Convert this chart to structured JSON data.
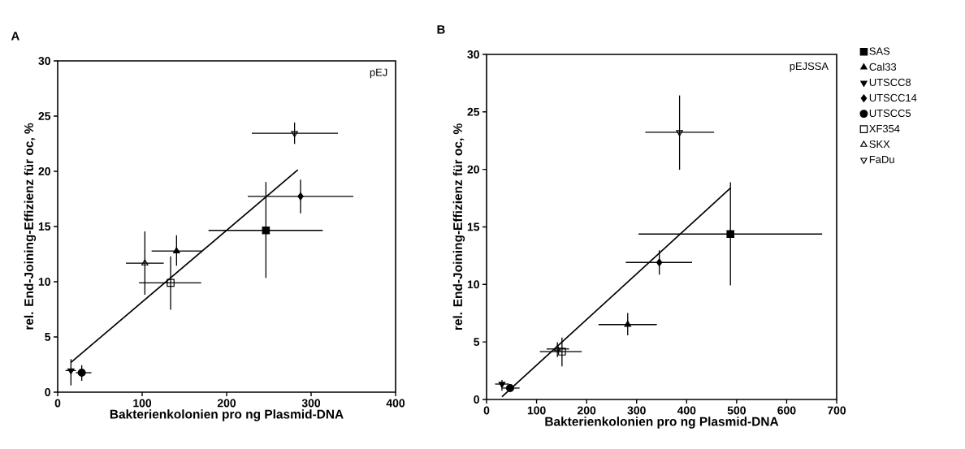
{
  "chart_data": [
    {
      "type": "scatter",
      "title": "A",
      "xlabel": "Bakterienkolonien pro ng Plasmid-DNA",
      "ylabel": "rel. End-Joining-Effizienz für oc, %",
      "annotations": [
        "pEJ"
      ],
      "xlim": [
        0,
        400
      ],
      "ylim": [
        0,
        30
      ],
      "xticks": [
        0,
        100,
        200,
        300,
        400
      ],
      "yticks": [
        0,
        5,
        10,
        15,
        20,
        25,
        30
      ],
      "grid": false,
      "legend": false,
      "series": [
        {
          "color": "#000000",
          "marker": "square",
          "x": [
            246.5
          ],
          "values": [
            14.65
          ],
          "xerrors": [
            [
              178.5,
              313.8
            ]
          ],
          "errors": [
            [
              10.34,
              19.03
            ]
          ]
        },
        {
          "color": "#000000",
          "marker": "triangle",
          "x": [
            140.7
          ],
          "values": [
            12.78
          ],
          "xerrors": [
            [
              111.2,
              170.5
            ]
          ],
          "errors": [
            [
              11.46,
              14.2
            ]
          ]
        },
        {
          "color": "#000000",
          "marker": "triangle_down",
          "x": [
            15.7
          ],
          "values": [
            1.96
          ],
          "xerrors": [
            [
              9.3,
              21.5
            ]
          ],
          "errors": [
            [
              0.6,
              3.0
            ]
          ]
        },
        {
          "color": "#000000",
          "marker": "diamond",
          "x": [
            287.5
          ],
          "values": [
            17.73
          ],
          "xerrors": [
            [
              225,
              350
            ]
          ],
          "errors": [
            [
              16.2,
              19.25
            ]
          ]
        },
        {
          "color": "#000000",
          "marker": "circle",
          "x": [
            28.5
          ],
          "values": [
            1.76
          ],
          "xerrors": [
            [
              21.5,
              40
            ]
          ],
          "errors": [
            [
              1.03,
              2.45
            ]
          ]
        },
        {
          "color": "#000000",
          "marker": "square_open",
          "x": [
            133.7
          ],
          "values": [
            9.9
          ],
          "xerrors": [
            [
              96.2,
              169.9
            ]
          ],
          "errors": [
            [
              7.47,
              12.3
            ]
          ]
        },
        {
          "color": "#000000",
          "marker": "triangle_open",
          "x": [
            103.2
          ],
          "values": [
            11.68
          ],
          "xerrors": [
            [
              80.8,
              125.6
            ]
          ],
          "errors": [
            [
              8.82,
              14.55
            ]
          ]
        },
        {
          "color": "#000000",
          "marker": "triangle_down_open",
          "x": [
            280.4
          ],
          "values": [
            23.44
          ],
          "xerrors": [
            [
              229.8,
              331.7
            ]
          ],
          "errors": [
            [
              22.48,
              24.42
            ]
          ]
        },
        {
          "type": "line",
          "color": "#000000",
          "x": [
            15.7,
            284.3
          ],
          "values": [
            2.69,
            20.13
          ]
        }
      ]
    },
    {
      "type": "scatter",
      "title": "B",
      "xlabel": "Bakterienkolonien pro ng Plasmid-DNA",
      "ylabel": "rel. End-Joining-Effizienz für oc, %",
      "annotations": [
        "pEJSSA"
      ],
      "xlim": [
        0,
        700
      ],
      "ylim": [
        0,
        30
      ],
      "xticks": [
        0,
        100,
        200,
        300,
        400,
        500,
        600,
        700
      ],
      "yticks": [
        0,
        5,
        10,
        15,
        20,
        25,
        30
      ],
      "grid": false,
      "legend": "right",
      "series": [
        {
          "name": "SAS",
          "color": "#000000",
          "marker": "square",
          "x": [
            487.6
          ],
          "values": [
            14.38
          ],
          "xerrors": [
            [
              303.8,
              671
            ]
          ],
          "errors": [
            [
              9.91,
              18.89
            ]
          ]
        },
        {
          "name": "Cal33",
          "color": "#000000",
          "marker": "triangle",
          "x": [
            282.2
          ],
          "values": [
            6.51
          ],
          "xerrors": [
            [
              223.8,
              340.5
            ]
          ],
          "errors": [
            [
              5.57,
              7.52
            ]
          ]
        },
        {
          "name": "UTSCC8",
          "color": "#000000",
          "marker": "triangle_down",
          "x": [
            30.8
          ],
          "values": [
            1.34
          ],
          "xerrors": [
            [
              17,
              45
            ]
          ],
          "errors": [
            [
              0.75,
              1.7
            ]
          ]
        },
        {
          "name": "UTSCC14",
          "color": "#000000",
          "marker": "diamond",
          "x": [
            345.4
          ],
          "values": [
            11.91
          ],
          "xerrors": [
            [
              278.4,
              410.8
            ]
          ],
          "errors": [
            [
              10.85,
              12.97
            ]
          ]
        },
        {
          "name": "UTSCC5",
          "color": "#000000",
          "marker": "circle",
          "x": [
            47
          ],
          "values": [
            0.99
          ],
          "xerrors": [
            [
              32.4,
              66
            ]
          ],
          "errors": [
            [
              0.8,
              1.2
            ]
          ]
        },
        {
          "name": "XF354",
          "color": "#000000",
          "marker": "square_open",
          "x": [
            150.8
          ],
          "values": [
            4.16
          ],
          "xerrors": [
            [
              106.5,
              190.3
            ]
          ],
          "errors": [
            [
              2.87,
              5.38
            ]
          ]
        },
        {
          "name": "SKX",
          "color": "#000000",
          "marker": "triangle_open",
          "x": [
            141.6
          ],
          "values": [
            4.39
          ],
          "xerrors": [
            [
              120,
              165
            ]
          ],
          "errors": [
            [
              3.69,
              4.98
            ]
          ]
        },
        {
          "name": "FaDu",
          "color": "#000000",
          "marker": "triangle_down_open",
          "x": [
            385.9
          ],
          "values": [
            23.23
          ],
          "xerrors": [
            [
              317.3,
              455.1
            ]
          ],
          "errors": [
            [
              19.97,
              26.43
            ]
          ]
        },
        {
          "type": "line",
          "color": "#000000",
          "x": [
            30.8,
            487.6
          ],
          "values": [
            0.23,
            18.37
          ]
        }
      ]
    }
  ]
}
